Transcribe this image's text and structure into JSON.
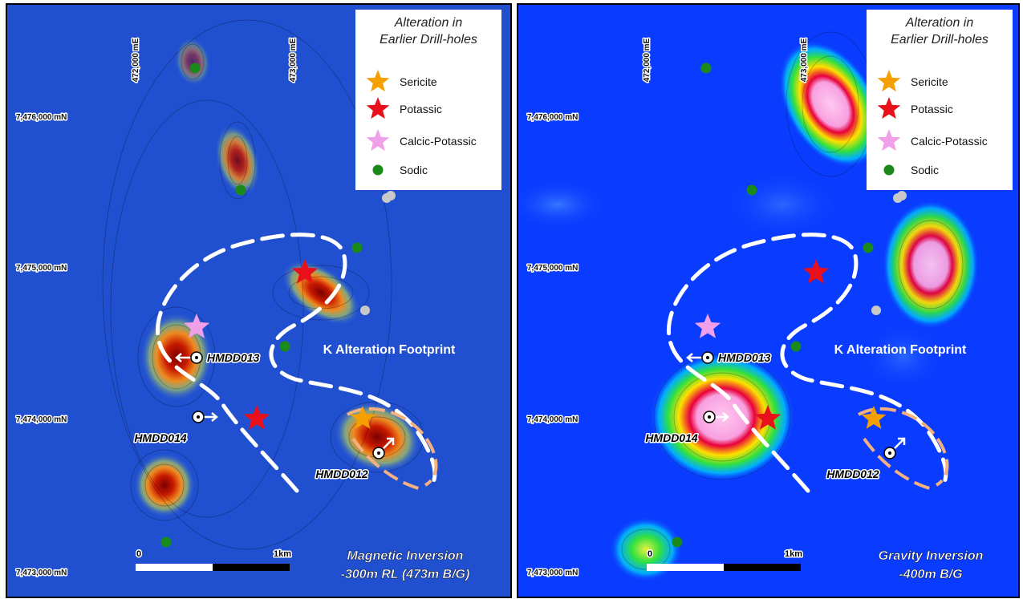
{
  "panels": [
    {
      "legend": {
        "title": [
          "Alteration in",
          "Earlier Drill-holes"
        ],
        "items": [
          "Sericite",
          "Potassic",
          "Calcic-Potassic",
          "Sodic"
        ]
      },
      "eastings": [
        "472,000 mE",
        "473,000 mE"
      ],
      "northings": [
        "7,476,000 mN",
        "7,475,000 mN",
        "7,474,000 mN",
        "7,473,000 mN"
      ],
      "drillholes": [
        "HMDD013",
        "HMDD014",
        "HMDD012"
      ],
      "footprint_label": "K Alteration Footprint",
      "scale": [
        "0",
        "1km"
      ],
      "caption": [
        "Magnetic Inversion",
        "-300m RL (473m B/G)"
      ]
    },
    {
      "legend": {
        "title": [
          "Alteration in",
          "Earlier Drill-holes"
        ],
        "items": [
          "Sericite",
          "Potassic",
          "Calcic-Potassic",
          "Sodic"
        ]
      },
      "eastings": [
        "472,000 mE",
        "473,000 mE"
      ],
      "northings": [
        "7,476,000 mN",
        "7,475,000 mN",
        "7,474,000 mN",
        "7,473,000 mN"
      ],
      "drillholes": [
        "HMDD013",
        "HMDD014",
        "HMDD012"
      ],
      "footprint_label": "K Alteration Footprint",
      "scale": [
        "0",
        "1km"
      ],
      "caption": [
        "Gravity Inversion",
        "-400m B/G"
      ]
    }
  ]
}
